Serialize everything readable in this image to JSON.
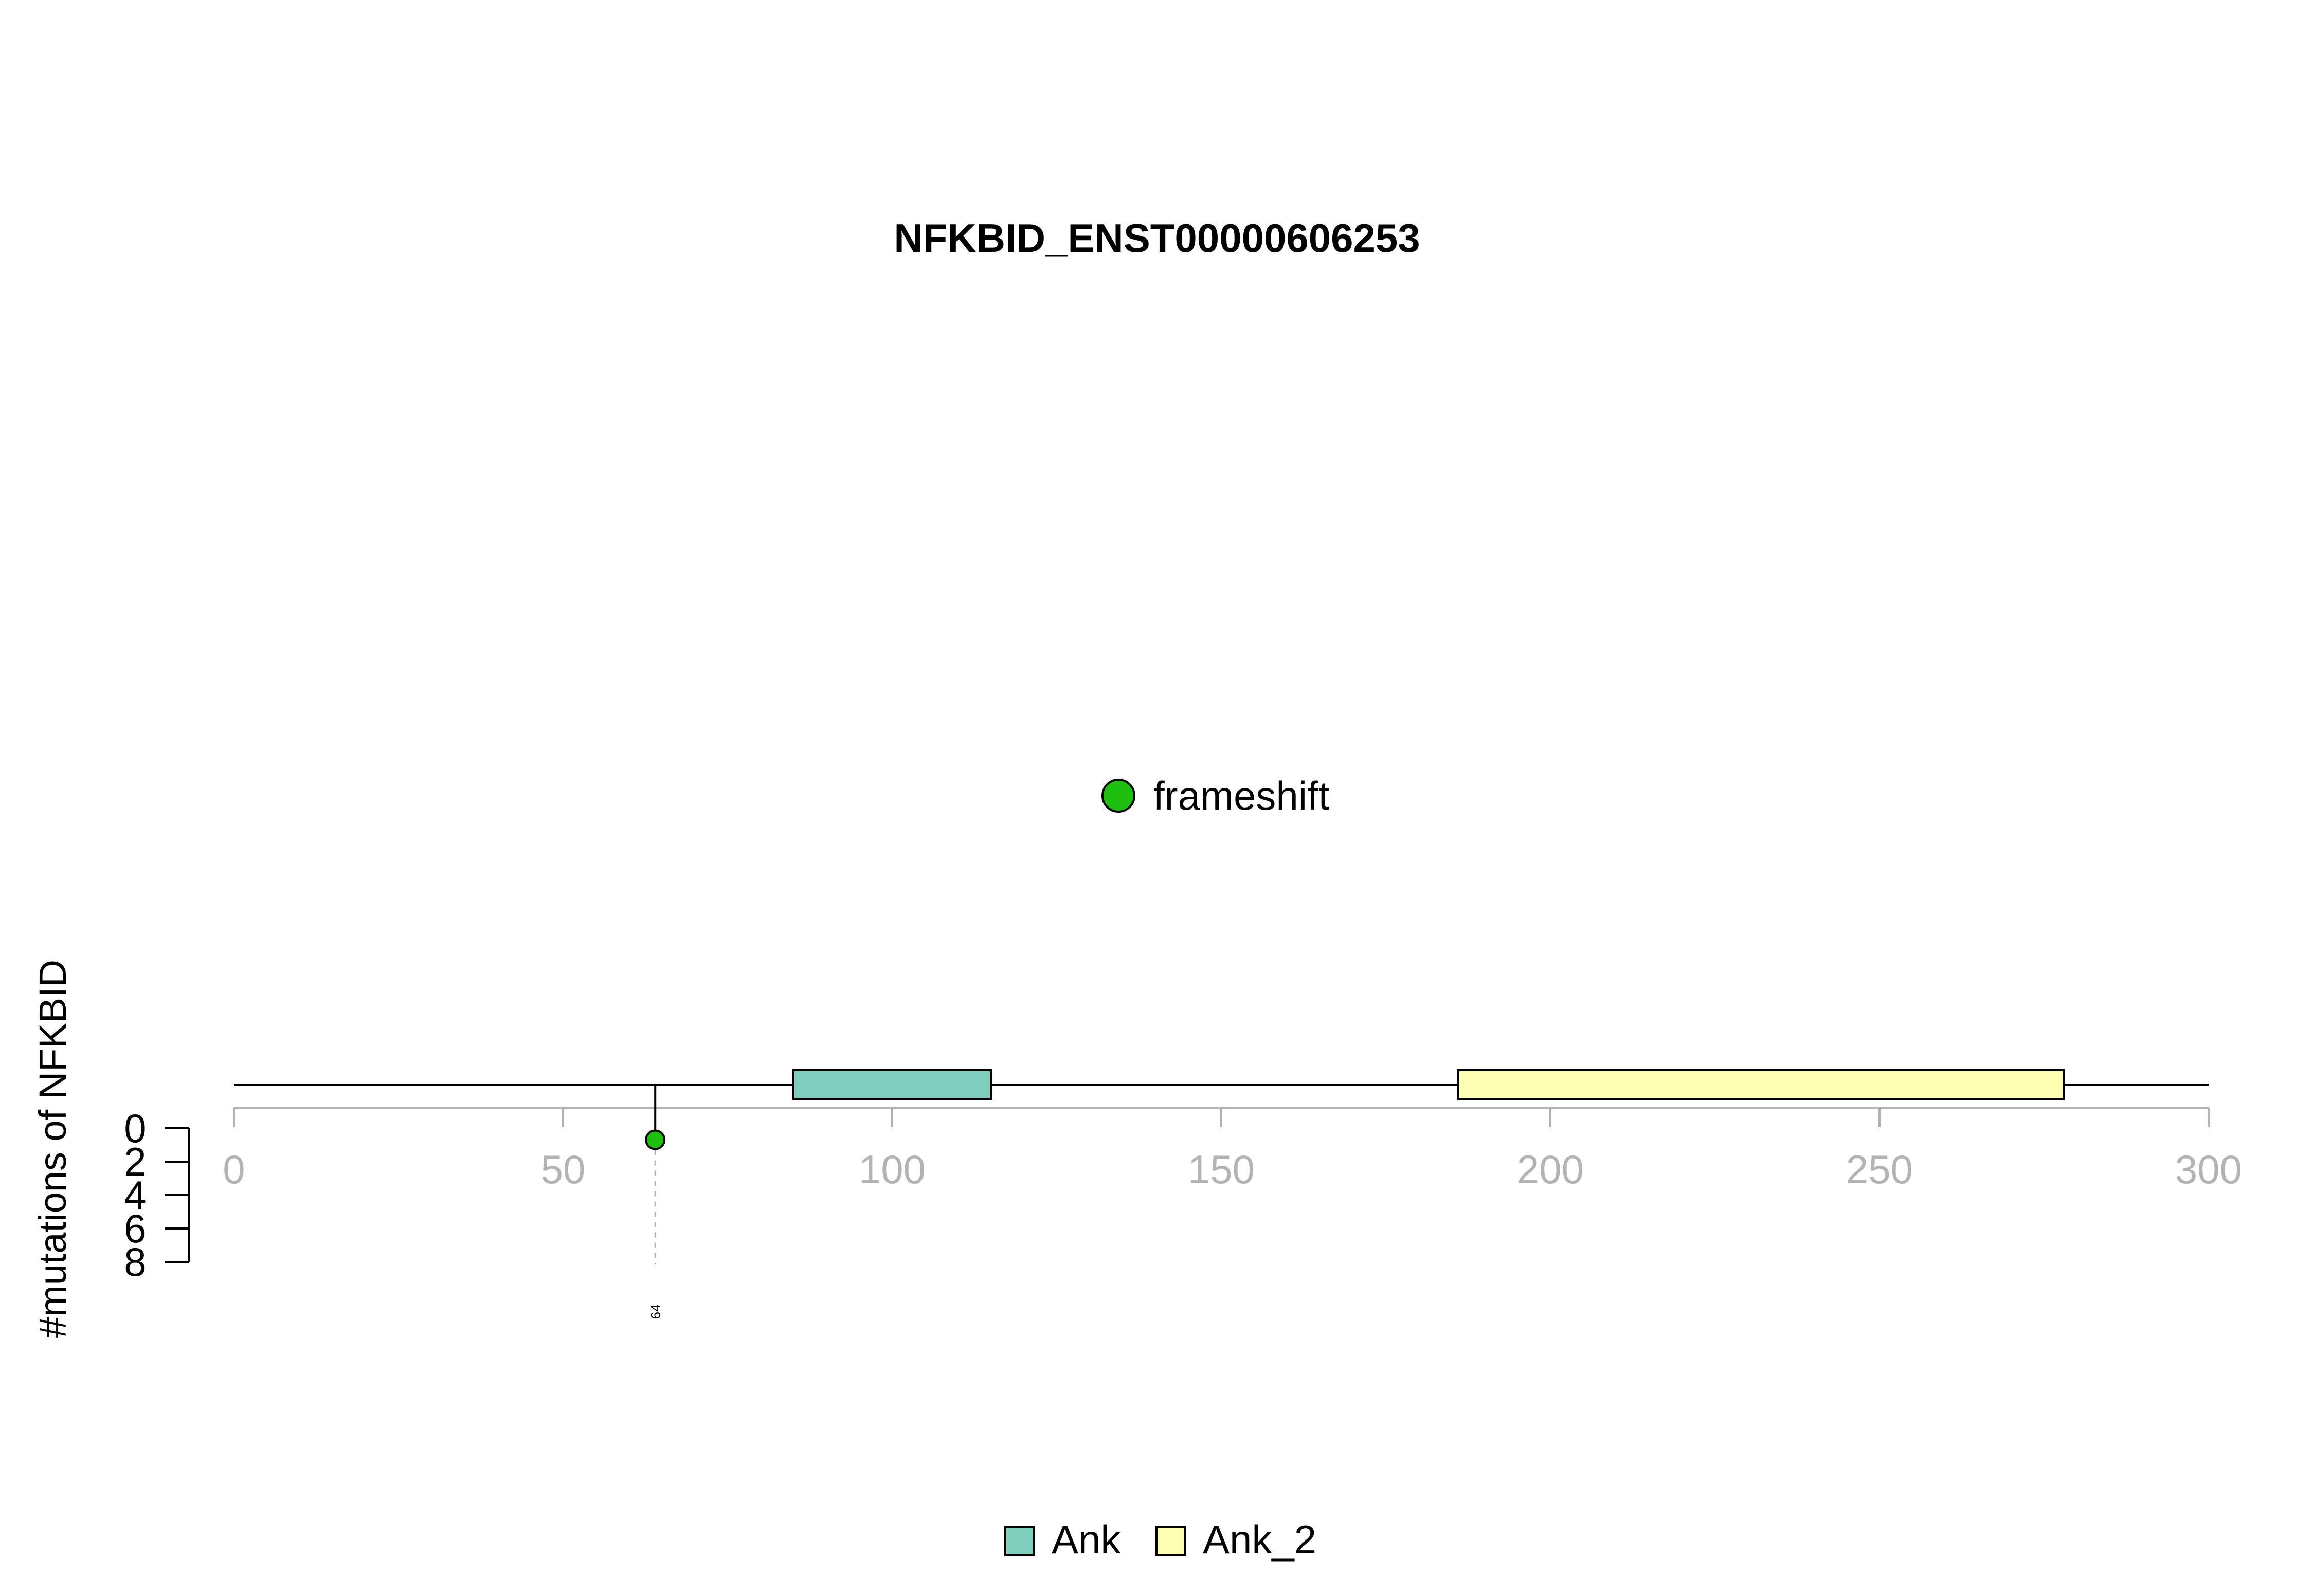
{
  "chart_data": {
    "type": "lollipop",
    "title": "NFKBID_ENST00000606253",
    "ylabel": "#mutations of NFKBID",
    "xlim": [
      0,
      300
    ],
    "x_ticks": [
      0,
      50,
      100,
      150,
      200,
      250,
      300
    ],
    "y_ticks": [
      0,
      2,
      4,
      6,
      8
    ],
    "ylim": [
      0,
      8
    ],
    "protein_length": 300,
    "domains": [
      {
        "name": "Ank",
        "start": 85,
        "end": 115,
        "color": "#7fcdbb"
      },
      {
        "name": "Ank_2",
        "start": 186,
        "end": 278,
        "color": "#ffffb3"
      }
    ],
    "mutations": [
      {
        "position": 64,
        "count": 1,
        "type": "frameshift",
        "label": "64",
        "color": "#1fbf0f"
      }
    ],
    "mutation_legend": [
      {
        "label": "frameshift",
        "color": "#1fbf0f"
      }
    ],
    "domain_legend": [
      {
        "label": "Ank",
        "color": "#7fcdbb"
      },
      {
        "label": "Ank_2",
        "color": "#ffffb3"
      }
    ],
    "axis_color": "#b3b3b3"
  }
}
